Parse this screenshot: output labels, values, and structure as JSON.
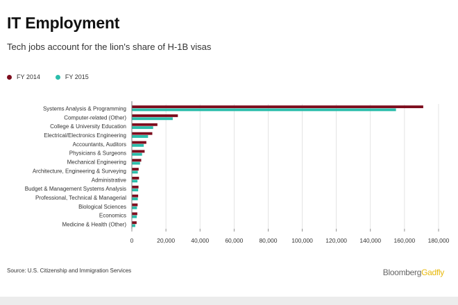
{
  "header": {
    "title": "IT Employment",
    "subtitle": "Tech jobs account for the lion's share of H-1B visas"
  },
  "colors": {
    "fy2014": "#7d0d1e",
    "fy2015": "#2bbdab",
    "axis": "#777777",
    "grid": "#d9d9d9"
  },
  "chart_data": {
    "type": "bar",
    "orientation": "horizontal",
    "title": "IT Employment",
    "subtitle": "Tech jobs account for the lion's share of H-1B visas",
    "xlabel": "",
    "ylabel": "",
    "xlim": [
      0,
      180000
    ],
    "grid": true,
    "legend_position": "top-left",
    "categories": [
      "Systems Analysis & Programming",
      "Computer-related (Other)",
      "College & University Education",
      "Electrical/Electronics Engineering",
      "Accountants, Auditors",
      "Physicians & Surgeons",
      "Mechanical Engineering",
      "Architecture, Engineering & Surveying",
      "Administrative",
      "Budget & Management Systems Analysis",
      "Professional, Technical & Managerial",
      "Biological Sciences",
      "Economics",
      "Medicine & Health (Other)"
    ],
    "series": [
      {
        "name": "FY 2014",
        "values": [
          171000,
          27000,
          15000,
          12000,
          8500,
          7500,
          5500,
          4000,
          4200,
          3900,
          3700,
          3400,
          3200,
          2800
        ]
      },
      {
        "name": "FY 2015",
        "values": [
          155000,
          24000,
          12500,
          9500,
          7000,
          6000,
          4800,
          3500,
          3300,
          3700,
          3500,
          3000,
          2900,
          2000
        ]
      }
    ],
    "x_ticks": [
      "0",
      "20,000",
      "40,000",
      "60,000",
      "80,000",
      "100,000",
      "120,000",
      "140,000",
      "160,000",
      "180,000"
    ]
  },
  "footer": {
    "source": "Source: U.S. Citizenship and Immigration Services",
    "brand_part1": "Bloomberg",
    "brand_part2": "Gadfly"
  }
}
